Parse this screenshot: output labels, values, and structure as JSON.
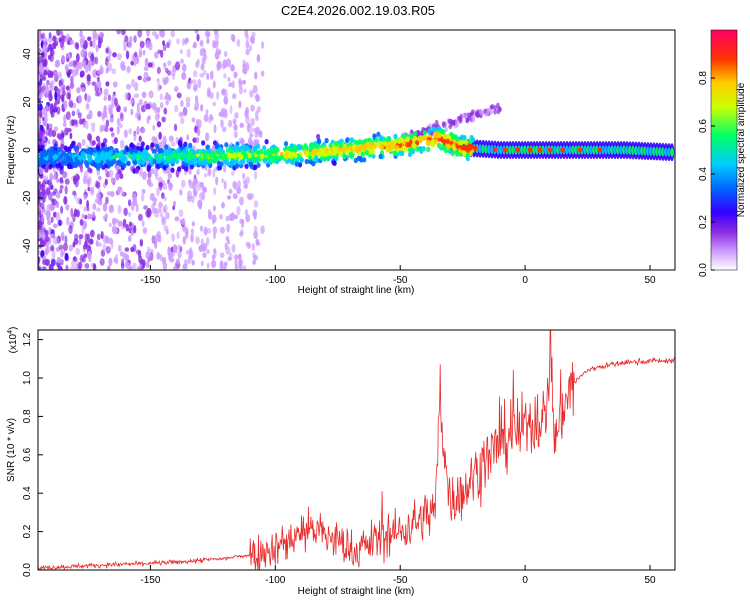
{
  "title": "C2E4.2026.002.19.03.R05",
  "colors": {
    "spectrogram_palette": [
      "#ffffff",
      "#cc99ff",
      "#8a2be2",
      "#3300ff",
      "#0066ff",
      "#00ccff",
      "#00ff66",
      "#ccff00",
      "#ffcc00",
      "#ff3300",
      "#ff0066"
    ],
    "snr_line": "#e82c2c",
    "axis": "#000000"
  },
  "chart_data": [
    {
      "type": "heatmap",
      "name": "spectrogram",
      "xlabel": "Height of straight line (km)",
      "ylabel": "Frequency (Hz)",
      "xlim": [
        -195,
        60
      ],
      "ylim": [
        -50,
        50
      ],
      "xticks": [
        -150,
        -100,
        -50,
        0,
        50
      ],
      "yticks": [
        -40,
        -20,
        0,
        20,
        40
      ],
      "colorbar": {
        "label": "Normalized spectral amplitude",
        "range": [
          0.0,
          1.0
        ],
        "ticks": [
          "0.0",
          "0.2",
          "0.4",
          "0.6",
          "0.8"
        ]
      },
      "ridge": {
        "description": "main signal ridge center frequency vs height",
        "x": [
          -195,
          -150,
          -100,
          -75,
          -50,
          -35,
          -25,
          -10,
          0,
          20,
          40,
          60
        ],
        "y": [
          -3,
          -3,
          -2,
          0,
          2,
          5,
          1,
          0,
          0,
          0,
          0,
          -1
        ]
      }
    },
    {
      "type": "line",
      "name": "snr",
      "xlabel": "Height of straight line (km)",
      "ylabel": "SNR (10 * v/v)",
      "multiplier": "(x10⁴)",
      "multiplier_base": "(x10",
      "multiplier_exp": "4",
      "multiplier_close": ")",
      "xlim": [
        -195,
        60
      ],
      "ylim": [
        0,
        1.25
      ],
      "xticks": [
        -150,
        -100,
        -50,
        0,
        50
      ],
      "yticks": [
        "0.0",
        "0.2",
        "0.4",
        "0.6",
        "0.8",
        "1.0",
        "1.2"
      ],
      "series": [
        {
          "name": "SNR",
          "x": [
            -195,
            -180,
            -160,
            -140,
            -120,
            -110,
            -100,
            -95,
            -90,
            -85,
            -80,
            -75,
            -70,
            -65,
            -60,
            -55,
            -50,
            -45,
            -40,
            -36,
            -34,
            -30,
            -25,
            -20,
            -15,
            -10,
            -5,
            0,
            5,
            8,
            10,
            12,
            15,
            20,
            25,
            30,
            40,
            50,
            60
          ],
          "y": [
            0.01,
            0.02,
            0.03,
            0.04,
            0.06,
            0.08,
            0.12,
            0.15,
            0.2,
            0.22,
            0.18,
            0.15,
            0.1,
            0.12,
            0.16,
            0.18,
            0.2,
            0.24,
            0.28,
            0.32,
            0.85,
            0.36,
            0.4,
            0.5,
            0.58,
            0.66,
            0.72,
            0.74,
            0.8,
            0.78,
            1.18,
            0.66,
            0.86,
            0.98,
            1.04,
            1.06,
            1.08,
            1.09,
            1.09
          ]
        }
      ]
    }
  ]
}
